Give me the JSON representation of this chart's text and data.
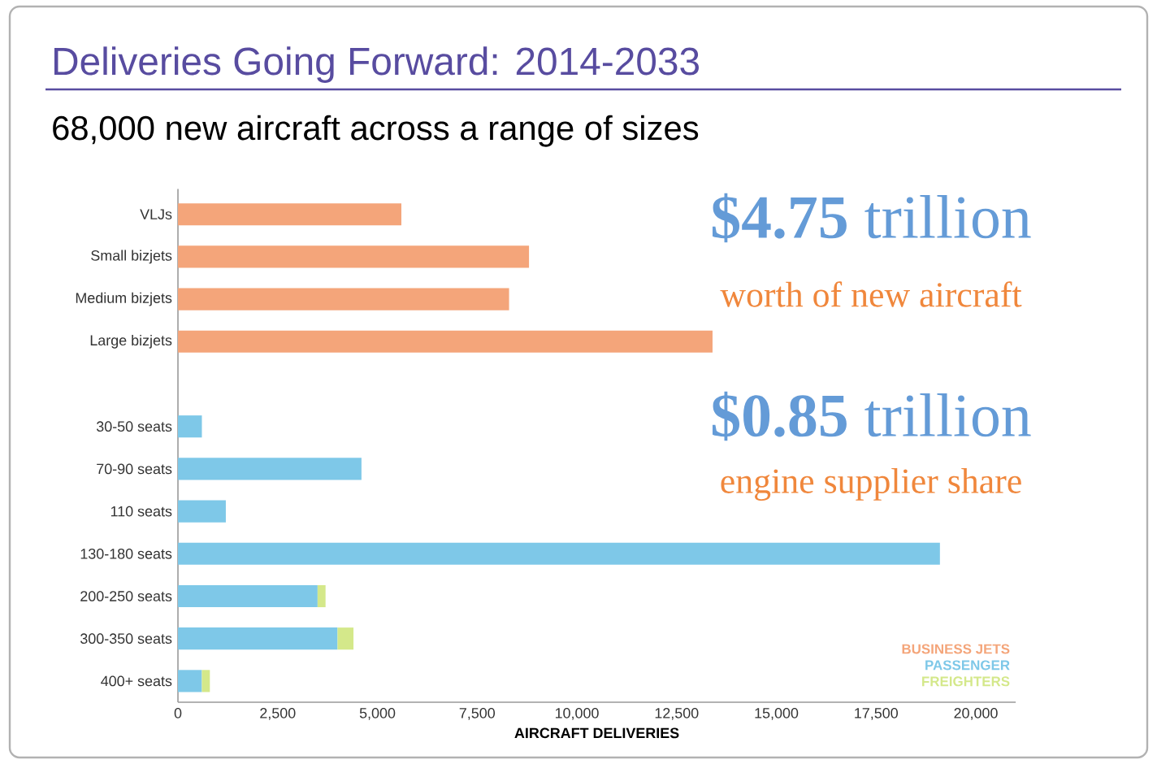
{
  "chart_data": {
    "type": "bar",
    "orientation": "horizontal",
    "stacked": true,
    "title": "Deliveries Going Forward: 2014-2033",
    "subtitle": "68,000 new aircraft across a range of sizes",
    "xlabel": "AIRCRAFT DELIVERIES",
    "categories": [
      "VLJs",
      "Small bizjets",
      "Medium bizjets",
      "Large bizjets",
      null,
      "30-50 seats",
      "70-90 seats",
      "110 seats",
      "130-180 seats",
      "200-250 seats",
      "300-350 seats",
      "400+ seats"
    ],
    "series": [
      {
        "name": "BUSINESS JETS",
        "color": "#f4a57a",
        "values": [
          5600,
          8800,
          8300,
          13400,
          null,
          null,
          null,
          null,
          null,
          null,
          null,
          null
        ]
      },
      {
        "name": "PASSENGER",
        "color": "#7ec8e8",
        "values": [
          null,
          null,
          null,
          null,
          null,
          600,
          4600,
          1200,
          19100,
          3500,
          4000,
          600
        ]
      },
      {
        "name": "FREIGHTERS",
        "color": "#d4e88a",
        "values": [
          null,
          null,
          null,
          null,
          null,
          null,
          null,
          null,
          null,
          200,
          400,
          200
        ]
      }
    ],
    "xlim": [
      0,
      21000
    ],
    "xticks": [
      0,
      {
        "value": 2500,
        "label": "2,500"
      },
      {
        "value": 5000,
        "label": "5,000"
      },
      {
        "value": 7500,
        "label": "7,500"
      },
      {
        "value": 10000,
        "label": "10,000"
      },
      {
        "value": 12500,
        "label": "12,500"
      },
      {
        "value": 15000,
        "label": "15,000"
      },
      {
        "value": 17500,
        "label": "17,500"
      },
      {
        "value": 20000,
        "label": "20,000"
      }
    ],
    "legend": "bottom right",
    "annotations": [
      "**$4.75** trillion",
      "worth of new aircraft",
      "**$0.85** trillion",
      "engine supplier share"
    ]
  }
}
